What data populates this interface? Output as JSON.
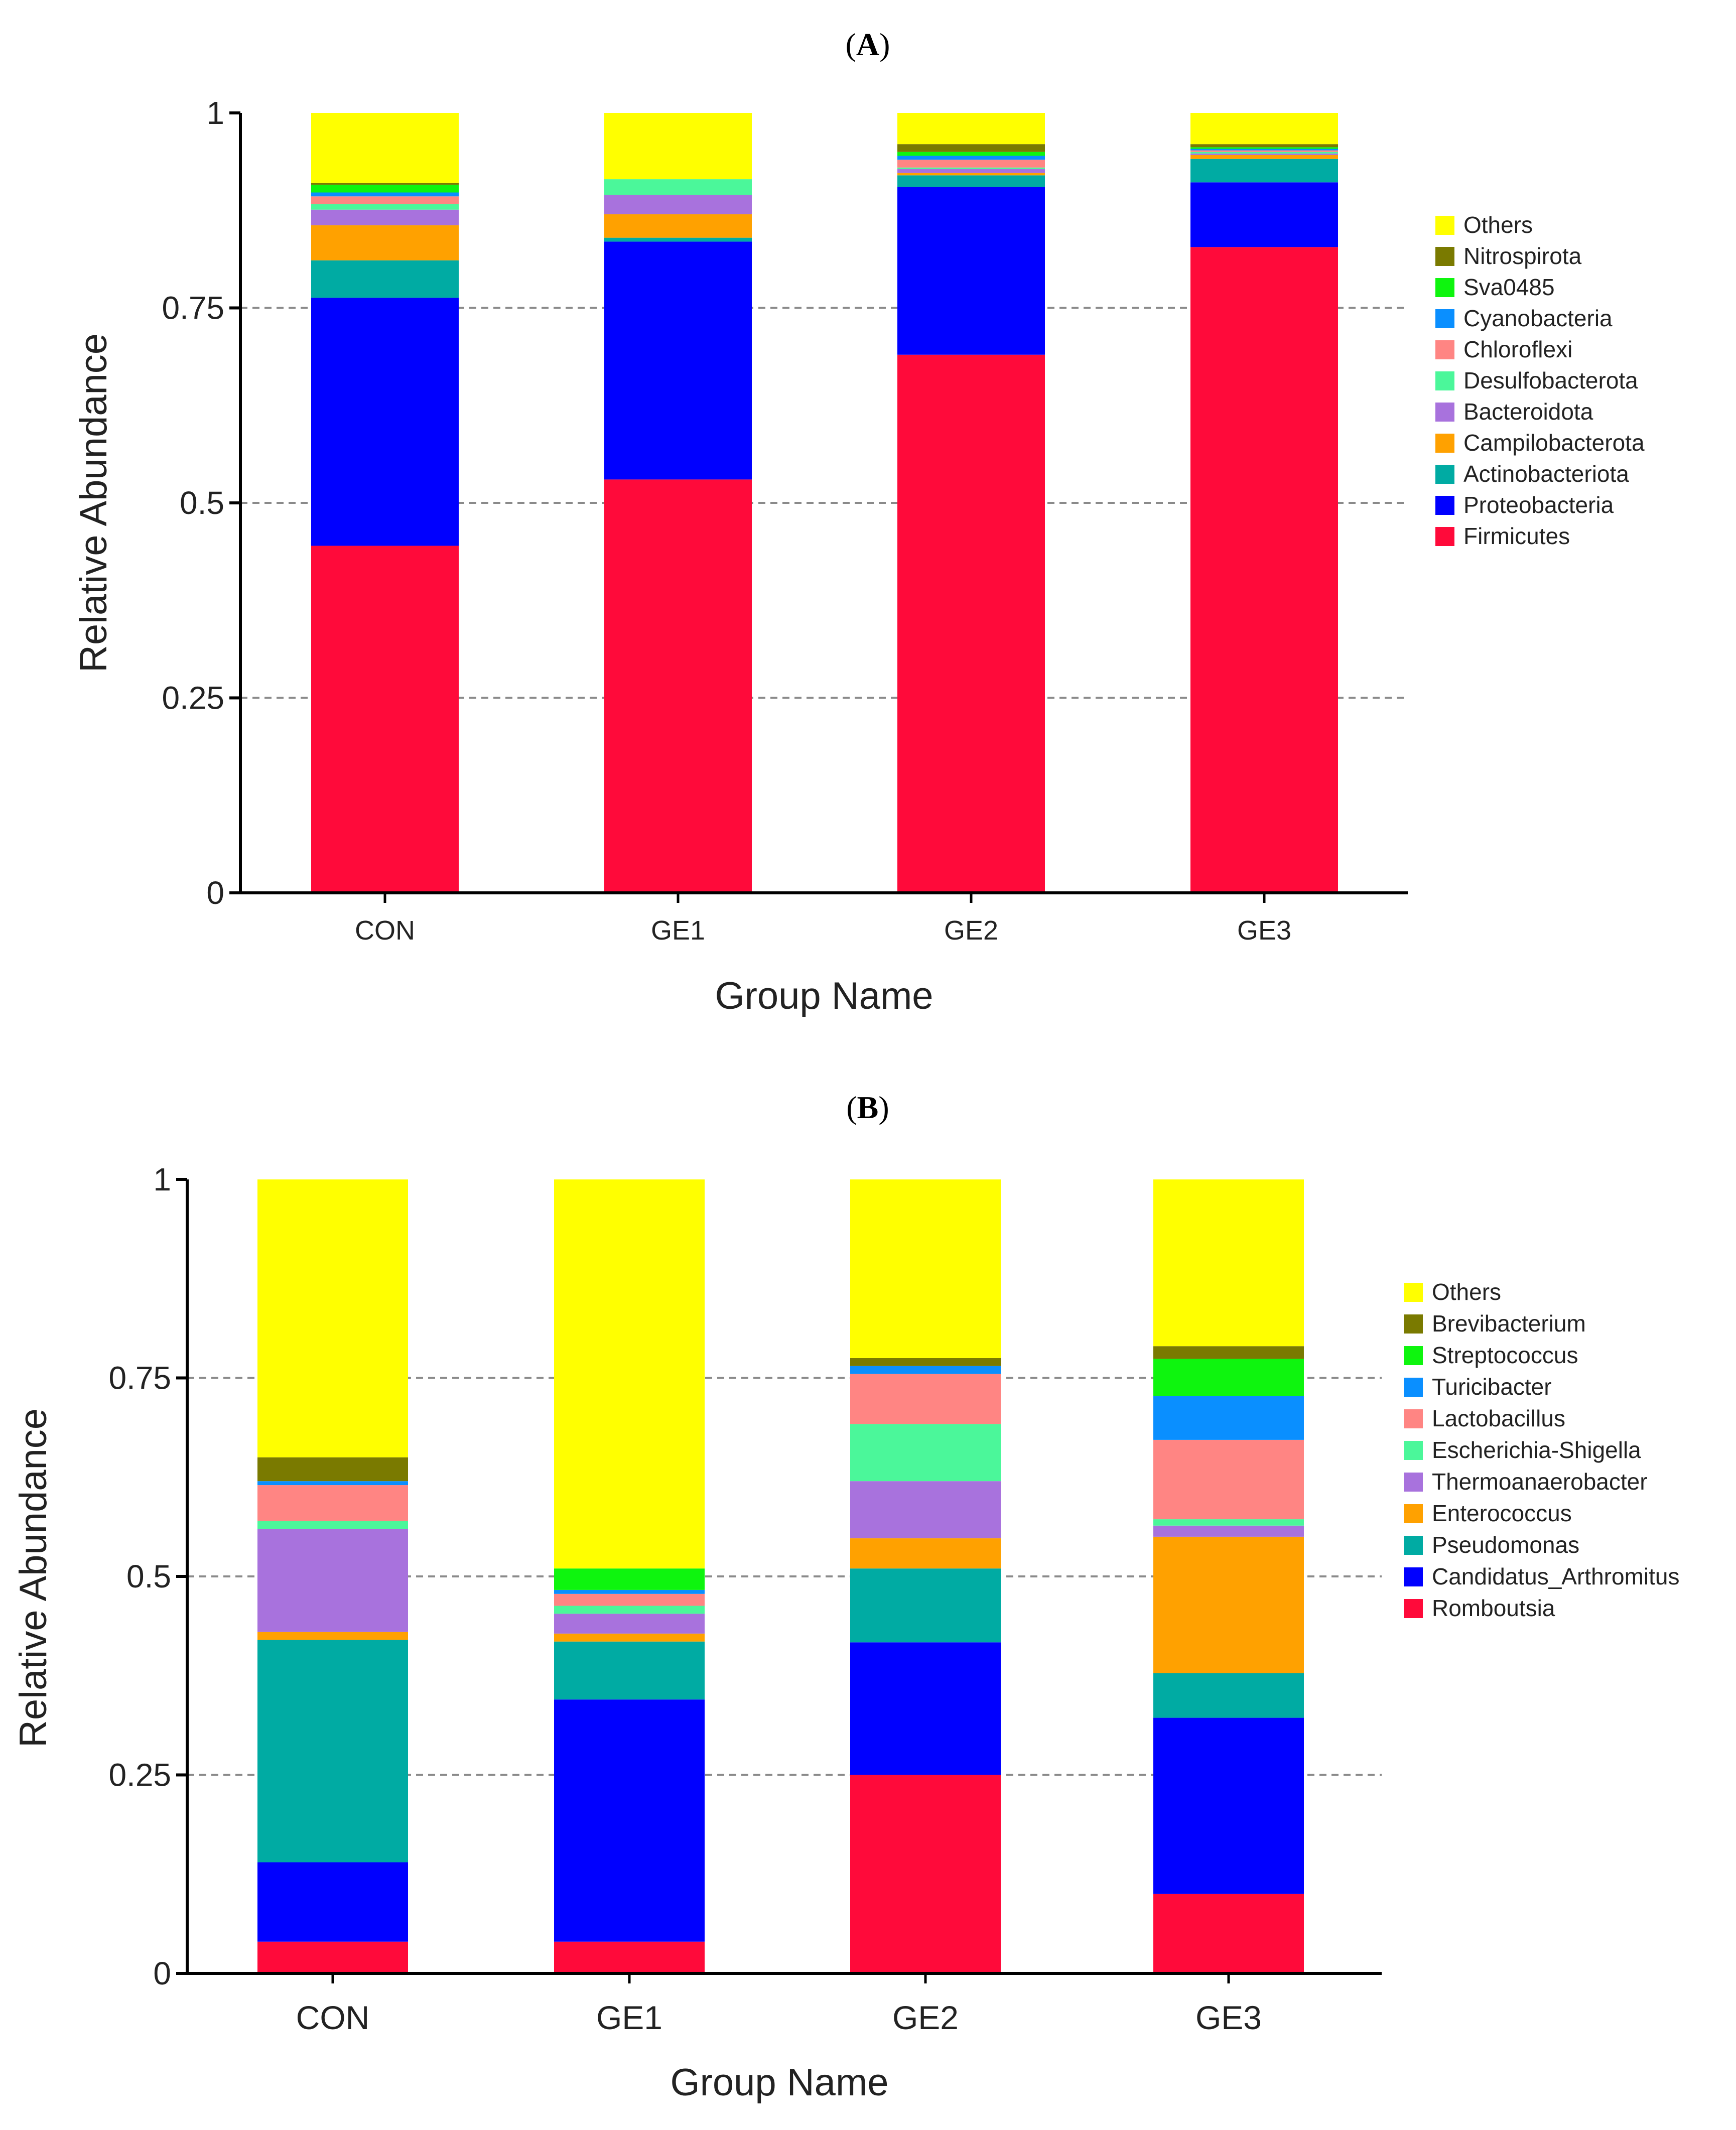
{
  "panels": [
    {
      "label": "A",
      "chart_data": {
        "type": "bar",
        "stacked": true,
        "title": "",
        "xlabel": "Group Name",
        "ylabel": "Relative Abundance",
        "ylim": [
          0,
          1
        ],
        "yticks": [
          "0",
          "0.25",
          "0.5",
          "0.75",
          "1"
        ],
        "grid": "dashed-horizontal",
        "legend_position": "right",
        "categories": [
          "CON",
          "GE1",
          "GE2",
          "GE3"
        ],
        "series": [
          {
            "name": "Firmicutes",
            "color": "#ff0a3a",
            "values": [
              0.445,
              0.53,
              0.69,
              0.828
            ]
          },
          {
            "name": "Proteobacteria",
            "color": "#0000ff",
            "values": [
              0.318,
              0.305,
              0.215,
              0.083
            ]
          },
          {
            "name": "Actinobacteriota",
            "color": "#00aba3",
            "values": [
              0.048,
              0.005,
              0.015,
              0.03
            ]
          },
          {
            "name": "Campilobacterota",
            "color": "#ffa100",
            "values": [
              0.045,
              0.03,
              0.003,
              0.005
            ]
          },
          {
            "name": "Bacteroidota",
            "color": "#a872dd",
            "values": [
              0.02,
              0.025,
              0.005,
              0.002
            ]
          },
          {
            "name": "Desulfobacterota",
            "color": "#4bf79a",
            "values": [
              0.007,
              0.02,
              0.002,
              0.002
            ]
          },
          {
            "name": "Chloroflexi",
            "color": "#ff8583",
            "values": [
              0.01,
              0.0,
              0.01,
              0.002
            ]
          },
          {
            "name": "Cyanobacteria",
            "color": "#0a8fff",
            "values": [
              0.005,
              0.0,
              0.005,
              0.002
            ]
          },
          {
            "name": "Sva0485",
            "color": "#0ef50e",
            "values": [
              0.01,
              0.0,
              0.005,
              0.002
            ]
          },
          {
            "name": "Nitrospirota",
            "color": "#7a7a00",
            "values": [
              0.002,
              0.0,
              0.01,
              0.004
            ]
          },
          {
            "name": "Others",
            "color": "#ffff00",
            "values": [
              0.09,
              0.085,
              0.04,
              0.04
            ]
          }
        ]
      }
    },
    {
      "label": "B",
      "chart_data": {
        "type": "bar",
        "stacked": true,
        "title": "",
        "xlabel": "Group Name",
        "ylabel": "Relative Abundance",
        "ylim": [
          0,
          1
        ],
        "yticks": [
          "0",
          "0.25",
          "0.5",
          "0.75",
          "1"
        ],
        "grid": "dashed-horizontal",
        "legend_position": "right",
        "categories": [
          "CON",
          "GE1",
          "GE2",
          "GE3"
        ],
        "series": [
          {
            "name": "Romboutsia",
            "color": "#ff0a3a",
            "values": [
              0.04,
              0.04,
              0.25,
              0.1
            ]
          },
          {
            "name": "Candidatus_Arthromitus",
            "color": "#0000ff",
            "values": [
              0.1,
              0.305,
              0.167,
              0.222
            ]
          },
          {
            "name": "Pseudomonas",
            "color": "#00aba3",
            "values": [
              0.28,
              0.073,
              0.093,
              0.056
            ]
          },
          {
            "name": "Enterococcus",
            "color": "#ffa100",
            "values": [
              0.01,
              0.01,
              0.038,
              0.172
            ]
          },
          {
            "name": "Thermoanaerobacter",
            "color": "#a872dd",
            "values": [
              0.13,
              0.025,
              0.072,
              0.014
            ]
          },
          {
            "name": "Escherichia-Shigella",
            "color": "#4bf79a",
            "values": [
              0.01,
              0.01,
              0.072,
              0.008
            ]
          },
          {
            "name": "Lactobacillus",
            "color": "#ff8583",
            "values": [
              0.045,
              0.015,
              0.063,
              0.1
            ]
          },
          {
            "name": "Turicibacter",
            "color": "#0a8fff",
            "values": [
              0.005,
              0.005,
              0.01,
              0.055
            ]
          },
          {
            "name": "Streptococcus",
            "color": "#0ef50e",
            "values": [
              0.0,
              0.027,
              0.0,
              0.047
            ]
          },
          {
            "name": "Brevibacterium",
            "color": "#7a7a00",
            "values": [
              0.03,
              0.0,
              0.01,
              0.016
            ]
          },
          {
            "name": "Others",
            "color": "#ffff00",
            "values": [
              0.35,
              0.49,
              0.225,
              0.21
            ]
          }
        ]
      }
    }
  ]
}
